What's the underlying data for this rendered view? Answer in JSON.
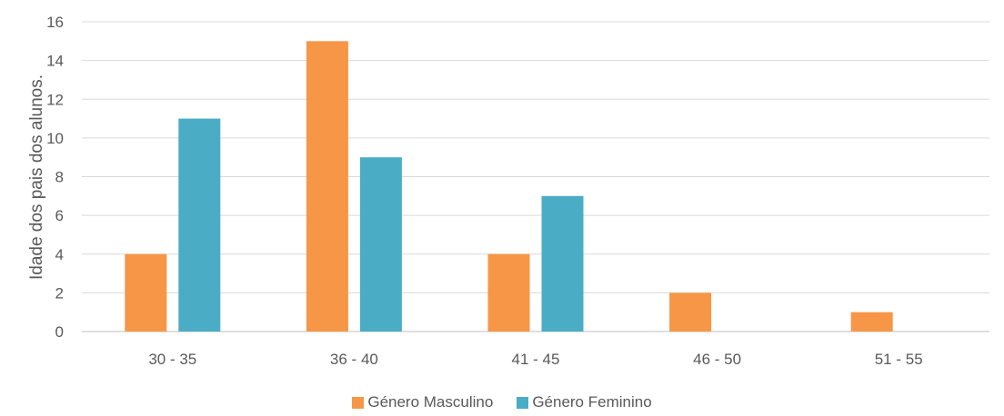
{
  "chart_data": {
    "type": "bar",
    "categories": [
      "30 - 35",
      "36 - 40",
      "41 - 45",
      "46 - 50",
      "51 - 55"
    ],
    "series": [
      {
        "name": "Género Masculino",
        "values": [
          4,
          15,
          4,
          2,
          1
        ],
        "color": "#F79646"
      },
      {
        "name": "Género Feminino",
        "values": [
          11,
          9,
          7,
          0,
          0
        ],
        "color": "#4BACC6"
      }
    ],
    "ylabel": "Idade dos pais dos alunos.",
    "xlabel": "",
    "ylim": [
      0,
      16
    ],
    "yticks": [
      0,
      2,
      4,
      6,
      8,
      10,
      12,
      14,
      16
    ],
    "grid": true,
    "legend_position": "bottom"
  }
}
